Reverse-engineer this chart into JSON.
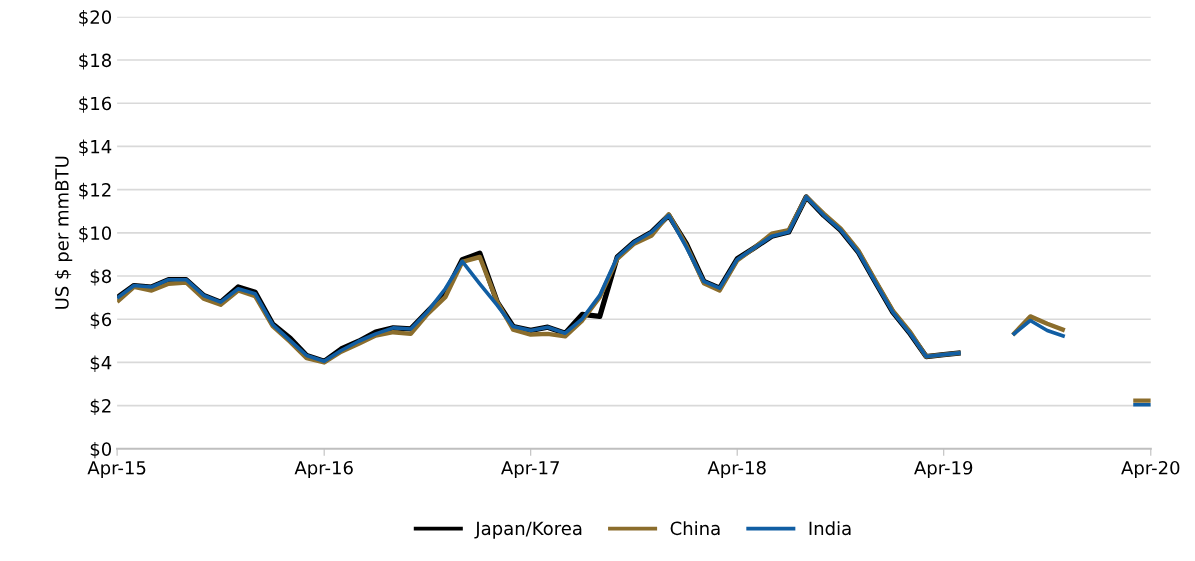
{
  "chart_data": {
    "type": "line",
    "ylabel": "US $ per mmBTU",
    "x": [
      "2015-04",
      "2015-05",
      "2015-06",
      "2015-07",
      "2015-08",
      "2015-09",
      "2015-10",
      "2015-11",
      "2015-12",
      "2016-01",
      "2016-02",
      "2016-03",
      "2016-04",
      "2016-05",
      "2016-06",
      "2016-07",
      "2016-08",
      "2016-09",
      "2016-10",
      "2016-11",
      "2016-12",
      "2017-01",
      "2017-02",
      "2017-03",
      "2017-04",
      "2017-05",
      "2017-06",
      "2017-07",
      "2017-08",
      "2017-09",
      "2017-10",
      "2017-11",
      "2017-12",
      "2018-01",
      "2018-02",
      "2018-03",
      "2018-04",
      "2018-05",
      "2018-06",
      "2018-07",
      "2018-08",
      "2018-09",
      "2018-10",
      "2018-11",
      "2018-12",
      "2019-01",
      "2019-02",
      "2019-03",
      "2019-04",
      "2019-05",
      "2019-06",
      "2019-07",
      "2019-08",
      "2019-09",
      "2019-10",
      "2019-11",
      "2019-12",
      "2020-01",
      "2020-02",
      "2020-03",
      "2020-04"
    ],
    "series": [
      {
        "name": "Japan/Korea",
        "color": "#000000",
        "values": [
          7.0,
          7.56,
          7.49,
          7.83,
          7.83,
          7.1,
          6.79,
          7.49,
          7.25,
          5.78,
          5.12,
          4.32,
          4.05,
          4.62,
          4.98,
          5.4,
          5.6,
          5.55,
          6.36,
          7.2,
          8.75,
          9.06,
          6.79,
          5.66,
          5.48,
          5.63,
          5.35,
          6.22,
          6.13,
          8.88,
          9.57,
          10.04,
          10.81,
          9.5,
          7.75,
          7.44,
          8.8,
          9.3,
          9.84,
          10.04,
          11.66,
          10.81,
          10.12,
          9.11,
          7.72,
          6.33,
          5.32,
          4.27,
          4.36,
          4.44,
          null,
          null,
          null,
          null,
          null,
          null,
          null,
          null,
          null,
          null,
          null
        ]
      },
      {
        "name": "China",
        "color": "#8b6d2c",
        "values": [
          6.8,
          7.5,
          7.33,
          7.64,
          7.7,
          6.95,
          6.67,
          7.33,
          7.07,
          5.68,
          4.95,
          4.2,
          4.0,
          4.5,
          4.86,
          5.24,
          5.4,
          5.32,
          6.25,
          7.02,
          8.65,
          8.88,
          6.79,
          5.52,
          5.29,
          5.32,
          5.21,
          5.94,
          7.02,
          8.8,
          9.5,
          9.88,
          10.85,
          9.42,
          7.67,
          7.33,
          8.72,
          9.3,
          9.96,
          10.12,
          11.66,
          10.89,
          10.19,
          9.19,
          7.8,
          6.4,
          5.4,
          4.27,
          4.36,
          4.44,
          null,
          null,
          5.27,
          6.13,
          5.79,
          5.48,
          null,
          null,
          null,
          2.23,
          2.23
        ]
      },
      {
        "name": "India",
        "color": "#115ea3",
        "values": [
          6.98,
          7.56,
          7.49,
          7.83,
          7.83,
          7.1,
          6.79,
          7.41,
          7.18,
          5.75,
          5.01,
          4.32,
          4.05,
          4.55,
          4.98,
          5.32,
          5.6,
          5.55,
          6.36,
          7.41,
          8.68,
          7.64,
          6.64,
          5.66,
          5.48,
          5.63,
          5.35,
          6.02,
          7.1,
          8.88,
          9.57,
          10.04,
          10.81,
          9.34,
          7.75,
          7.44,
          8.77,
          9.3,
          9.84,
          10.04,
          11.66,
          10.81,
          10.12,
          9.11,
          7.72,
          6.33,
          5.32,
          4.27,
          4.36,
          4.44,
          null,
          null,
          5.27,
          5.94,
          5.48,
          5.2,
          null,
          null,
          null,
          2.04,
          2.04
        ]
      }
    ],
    "xlim": [
      "2015-04",
      "2020-04"
    ],
    "xticks": [
      {
        "value": "2015-04",
        "label": "Apr-15"
      },
      {
        "value": "2016-04",
        "label": "Apr-16"
      },
      {
        "value": "2017-04",
        "label": "Apr-17"
      },
      {
        "value": "2018-04",
        "label": "Apr-18"
      },
      {
        "value": "2019-04",
        "label": "Apr-19"
      },
      {
        "value": "2020-04",
        "label": "Apr-20"
      }
    ],
    "ylim": [
      0,
      20
    ],
    "yticks": [
      {
        "value": 0,
        "label": "$0"
      },
      {
        "value": 2,
        "label": "$2"
      },
      {
        "value": 4,
        "label": "$4"
      },
      {
        "value": 6,
        "label": "$6"
      },
      {
        "value": 8,
        "label": "$8"
      },
      {
        "value": 10,
        "label": "$10"
      },
      {
        "value": 12,
        "label": "$12"
      },
      {
        "value": 14,
        "label": "$14"
      },
      {
        "value": 16,
        "label": "$16"
      },
      {
        "value": 18,
        "label": "$18"
      },
      {
        "value": 20,
        "label": "$20"
      }
    ],
    "grid": "y",
    "legend": "bottom",
    "marker": "none",
    "line_style": "solid"
  }
}
